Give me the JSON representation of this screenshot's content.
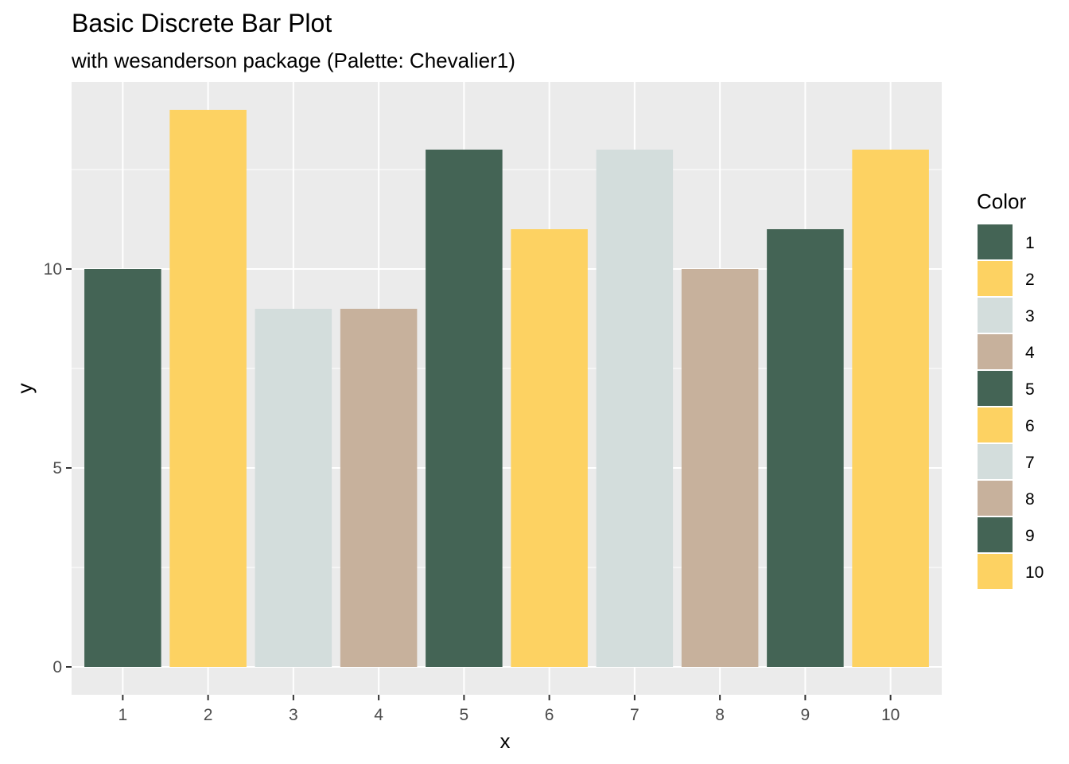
{
  "chart_data": {
    "type": "bar",
    "title": "Basic Discrete Bar Plot",
    "subtitle": "with wesanderson package (Palette: Chevalier1)",
    "xlabel": "x",
    "ylabel": "y",
    "categories": [
      "1",
      "2",
      "3",
      "4",
      "5",
      "6",
      "7",
      "8",
      "9",
      "10"
    ],
    "values": [
      10,
      14,
      9,
      9,
      13,
      11,
      13,
      10,
      11,
      13
    ],
    "y_ticks": [
      0,
      5,
      10
    ],
    "y_tick_labels": [
      "0",
      "5",
      "10"
    ],
    "ylim": [
      -0.7,
      14.7
    ],
    "grid": true,
    "palette": [
      "#446455",
      "#FDD262",
      "#D3DDDC",
      "#C7B19C"
    ],
    "bar_colors": [
      "#446455",
      "#FDD262",
      "#D3DDDC",
      "#C7B19C",
      "#446455",
      "#FDD262",
      "#D3DDDC",
      "#C7B19C",
      "#446455",
      "#FDD262"
    ],
    "panel_background": "#EBEBEB",
    "legend": {
      "title": "Color",
      "placement": "right",
      "labels": [
        "1",
        "2",
        "3",
        "4",
        "5",
        "6",
        "7",
        "8",
        "9",
        "10"
      ]
    }
  }
}
